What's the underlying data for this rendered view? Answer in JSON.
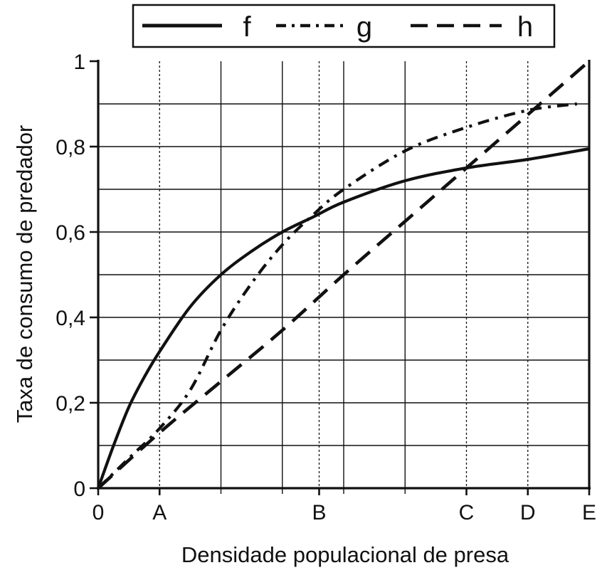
{
  "chart_data": {
    "type": "line",
    "xlabel": "Densidade populacional de presa",
    "ylabel": "Taxa de consumo de predador",
    "xlim": [
      0,
      8
    ],
    "ylim": [
      0,
      1
    ],
    "y_ticks": [
      {
        "value": 0,
        "label": "0"
      },
      {
        "value": 0.2,
        "label": "0,2"
      },
      {
        "value": 0.4,
        "label": "0,4"
      },
      {
        "value": 0.6,
        "label": "0,6"
      },
      {
        "value": 0.8,
        "label": "0,8"
      },
      {
        "value": 1,
        "label": "1"
      }
    ],
    "x_ticks": [
      {
        "value": 0,
        "label": "0"
      },
      {
        "value": 1,
        "label": "A"
      },
      {
        "value": 3.6,
        "label": "B"
      },
      {
        "value": 6,
        "label": "C"
      },
      {
        "value": 7,
        "label": "D"
      },
      {
        "value": 8,
        "label": "E"
      }
    ],
    "vertical_gridlines_solid": [
      2,
      3,
      4,
      5
    ],
    "vertical_gridlines_dotted": [
      1,
      3.6,
      6,
      7
    ],
    "horizontal_gridlines": [
      0.1,
      0.2,
      0.3,
      0.4,
      0.5,
      0.6,
      0.7,
      0.8,
      0.9
    ],
    "legend_position": "top",
    "series": [
      {
        "name": "f",
        "style": "solid",
        "color": "#111111",
        "x": [
          0,
          0.25,
          0.5,
          0.75,
          1,
          1.5,
          2,
          2.5,
          3,
          3.5,
          4,
          5,
          6,
          7,
          8
        ],
        "y": [
          0,
          0.1,
          0.19,
          0.26,
          0.32,
          0.425,
          0.5,
          0.555,
          0.6,
          0.635,
          0.67,
          0.72,
          0.75,
          0.77,
          0.795
        ]
      },
      {
        "name": "g",
        "style": "dash-dot",
        "color": "#111111",
        "x": [
          0,
          0.5,
          1,
          1.5,
          2,
          2.5,
          3,
          3.5,
          4,
          5,
          6,
          7,
          7.8
        ],
        "y": [
          0,
          0.07,
          0.14,
          0.23,
          0.37,
          0.48,
          0.57,
          0.64,
          0.7,
          0.79,
          0.845,
          0.885,
          0.9
        ]
      },
      {
        "name": "h",
        "style": "dashed",
        "color": "#111111",
        "x": [
          0,
          1,
          2,
          3,
          4,
          5,
          6,
          7,
          8
        ],
        "y": [
          0,
          0.13,
          0.25,
          0.37,
          0.5,
          0.625,
          0.75,
          0.875,
          1
        ]
      }
    ]
  }
}
